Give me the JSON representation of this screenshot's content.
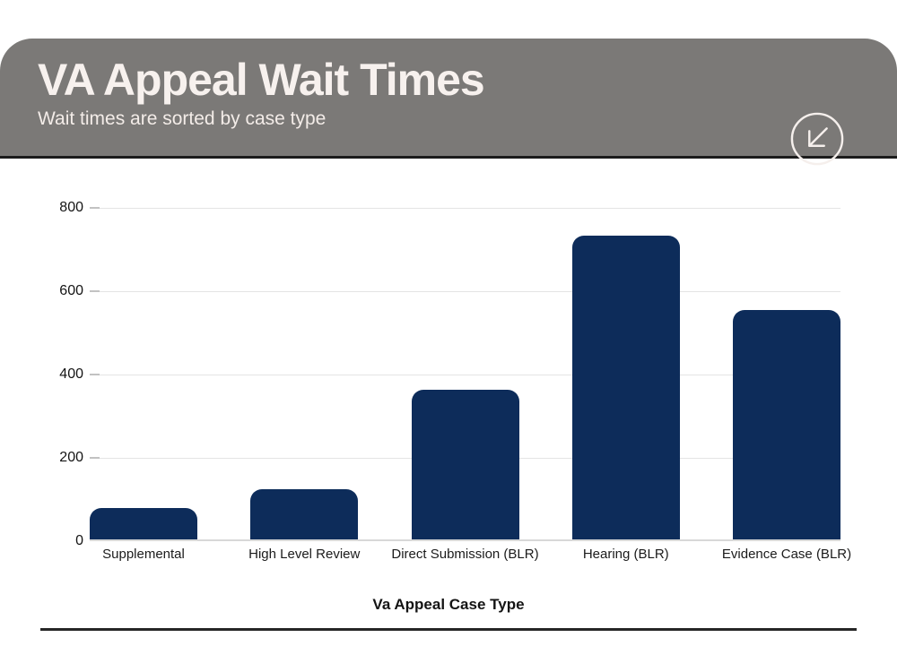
{
  "header": {
    "title": "VA Appeal Wait Times",
    "subtitle": "Wait times are sorted by case type",
    "icon": "arrow-down-left-circle-icon"
  },
  "chart_data": {
    "type": "bar",
    "title": "VA Appeal Wait Times",
    "subtitle": "Wait times are sorted by case type",
    "categories": [
      "Supplemental",
      "High Level Review",
      "Direct Submission (BLR)",
      "Hearing (BLR)",
      "Evidence Case (BLR)"
    ],
    "values": [
      75,
      120,
      360,
      730,
      550
    ],
    "xlabel": "Va Appeal Case Type",
    "ylabel": "",
    "ylim": [
      0,
      800
    ],
    "yticks": [
      0,
      200,
      400,
      600,
      800
    ],
    "grid": true,
    "legend": "none",
    "bar_color": "#0d2c5a"
  },
  "colors": {
    "header_bg": "#7b7977",
    "header_text": "#f7f1ee",
    "bar": "#0d2c5a",
    "gridline": "#e4e4e4",
    "axis_text": "#141414",
    "rule": "#262626"
  }
}
